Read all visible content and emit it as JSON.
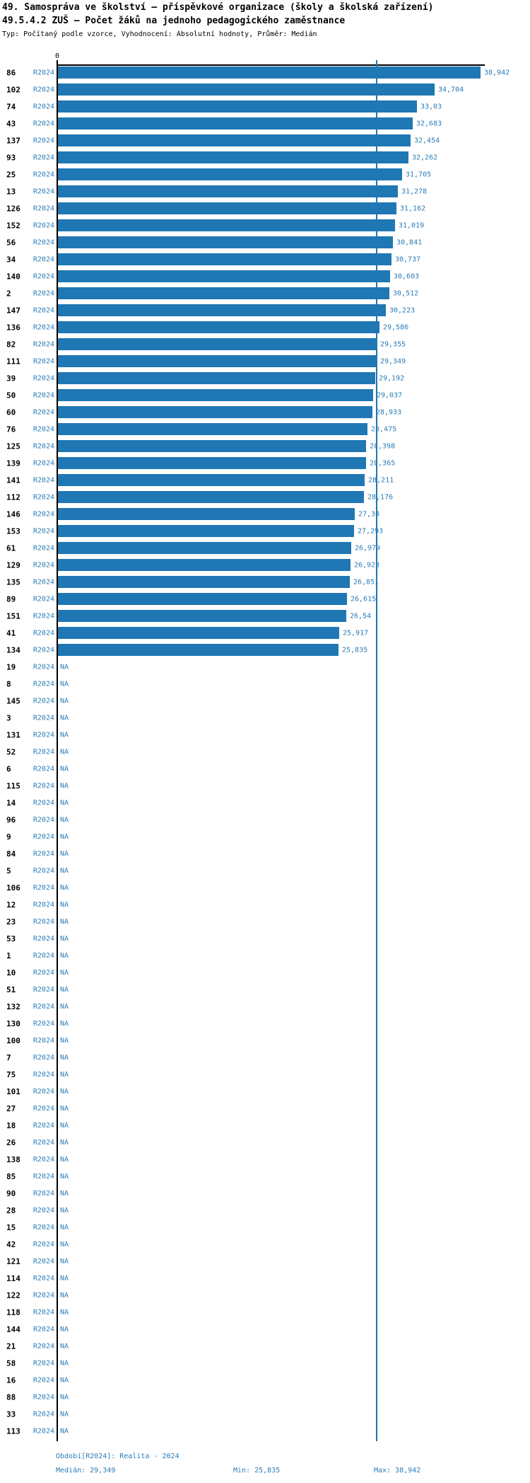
{
  "header": {
    "title": "49. Samospráva ve školství – příspěvkové organizace (školy a školská zařízení)",
    "subtitle": "49.5.4.2 ZUŠ – Počet žáků na jednoho pedagogického zaměstnance",
    "meta": "Typ: Počítaný podle vzorce, Vyhodnocení: Absolutní hodnoty, Průměr: Medián"
  },
  "chart_data": {
    "type": "bar",
    "orientation": "horizontal",
    "title": "49.5.4.2 ZUŠ – Počet žáků na jednoho pedagogického zaměstnance",
    "period_label": "R2024",
    "zero_label": "0",
    "na_text": "NA",
    "xlim": [
      0,
      38.942
    ],
    "median": 29.349,
    "min": 25.835,
    "max": 38.942,
    "legend_position": "none",
    "grid": false,
    "rows": [
      {
        "id": "86",
        "value": 38.942,
        "display": "38,942"
      },
      {
        "id": "102",
        "value": 34.704,
        "display": "34,704"
      },
      {
        "id": "74",
        "value": 33.03,
        "display": "33,03"
      },
      {
        "id": "43",
        "value": 32.683,
        "display": "32,683"
      },
      {
        "id": "137",
        "value": 32.454,
        "display": "32,454"
      },
      {
        "id": "93",
        "value": 32.262,
        "display": "32,262"
      },
      {
        "id": "25",
        "value": 31.705,
        "display": "31,705"
      },
      {
        "id": "13",
        "value": 31.278,
        "display": "31,278"
      },
      {
        "id": "126",
        "value": 31.162,
        "display": "31,162"
      },
      {
        "id": "152",
        "value": 31.019,
        "display": "31,019"
      },
      {
        "id": "56",
        "value": 30.841,
        "display": "30,841"
      },
      {
        "id": "34",
        "value": 30.737,
        "display": "30,737"
      },
      {
        "id": "140",
        "value": 30.603,
        "display": "30,603"
      },
      {
        "id": "2",
        "value": 30.512,
        "display": "30,512"
      },
      {
        "id": "147",
        "value": 30.223,
        "display": "30,223"
      },
      {
        "id": "136",
        "value": 29.586,
        "display": "29,586"
      },
      {
        "id": "82",
        "value": 29.355,
        "display": "29,355"
      },
      {
        "id": "111",
        "value": 29.349,
        "display": "29,349"
      },
      {
        "id": "39",
        "value": 29.192,
        "display": "29,192"
      },
      {
        "id": "50",
        "value": 29.037,
        "display": "29,037"
      },
      {
        "id": "60",
        "value": 28.933,
        "display": "28,933"
      },
      {
        "id": "76",
        "value": 28.475,
        "display": "28,475"
      },
      {
        "id": "125",
        "value": 28.398,
        "display": "28,398"
      },
      {
        "id": "139",
        "value": 28.365,
        "display": "28,365"
      },
      {
        "id": "141",
        "value": 28.211,
        "display": "28,211"
      },
      {
        "id": "112",
        "value": 28.176,
        "display": "28,176"
      },
      {
        "id": "146",
        "value": 27.34,
        "display": "27,34"
      },
      {
        "id": "153",
        "value": 27.293,
        "display": "27,293"
      },
      {
        "id": "61",
        "value": 26.979,
        "display": "26,979"
      },
      {
        "id": "129",
        "value": 26.923,
        "display": "26,923"
      },
      {
        "id": "135",
        "value": 26.851,
        "display": "26,851"
      },
      {
        "id": "89",
        "value": 26.615,
        "display": "26,615"
      },
      {
        "id": "151",
        "value": 26.54,
        "display": "26,54"
      },
      {
        "id": "41",
        "value": 25.917,
        "display": "25,917"
      },
      {
        "id": "134",
        "value": 25.835,
        "display": "25,835"
      },
      {
        "id": "19",
        "value": null,
        "display": "NA"
      },
      {
        "id": "8",
        "value": null,
        "display": "NA"
      },
      {
        "id": "145",
        "value": null,
        "display": "NA"
      },
      {
        "id": "3",
        "value": null,
        "display": "NA"
      },
      {
        "id": "131",
        "value": null,
        "display": "NA"
      },
      {
        "id": "52",
        "value": null,
        "display": "NA"
      },
      {
        "id": "6",
        "value": null,
        "display": "NA"
      },
      {
        "id": "115",
        "value": null,
        "display": "NA"
      },
      {
        "id": "14",
        "value": null,
        "display": "NA"
      },
      {
        "id": "96",
        "value": null,
        "display": "NA"
      },
      {
        "id": "9",
        "value": null,
        "display": "NA"
      },
      {
        "id": "84",
        "value": null,
        "display": "NA"
      },
      {
        "id": "5",
        "value": null,
        "display": "NA"
      },
      {
        "id": "106",
        "value": null,
        "display": "NA"
      },
      {
        "id": "12",
        "value": null,
        "display": "NA"
      },
      {
        "id": "23",
        "value": null,
        "display": "NA"
      },
      {
        "id": "53",
        "value": null,
        "display": "NA"
      },
      {
        "id": "1",
        "value": null,
        "display": "NA"
      },
      {
        "id": "10",
        "value": null,
        "display": "NA"
      },
      {
        "id": "51",
        "value": null,
        "display": "NA"
      },
      {
        "id": "132",
        "value": null,
        "display": "NA"
      },
      {
        "id": "130",
        "value": null,
        "display": "NA"
      },
      {
        "id": "100",
        "value": null,
        "display": "NA"
      },
      {
        "id": "7",
        "value": null,
        "display": "NA"
      },
      {
        "id": "75",
        "value": null,
        "display": "NA"
      },
      {
        "id": "101",
        "value": null,
        "display": "NA"
      },
      {
        "id": "27",
        "value": null,
        "display": "NA"
      },
      {
        "id": "18",
        "value": null,
        "display": "NA"
      },
      {
        "id": "26",
        "value": null,
        "display": "NA"
      },
      {
        "id": "138",
        "value": null,
        "display": "NA"
      },
      {
        "id": "85",
        "value": null,
        "display": "NA"
      },
      {
        "id": "90",
        "value": null,
        "display": "NA"
      },
      {
        "id": "28",
        "value": null,
        "display": "NA"
      },
      {
        "id": "15",
        "value": null,
        "display": "NA"
      },
      {
        "id": "42",
        "value": null,
        "display": "NA"
      },
      {
        "id": "121",
        "value": null,
        "display": "NA"
      },
      {
        "id": "114",
        "value": null,
        "display": "NA"
      },
      {
        "id": "122",
        "value": null,
        "display": "NA"
      },
      {
        "id": "118",
        "value": null,
        "display": "NA"
      },
      {
        "id": "144",
        "value": null,
        "display": "NA"
      },
      {
        "id": "21",
        "value": null,
        "display": "NA"
      },
      {
        "id": "58",
        "value": null,
        "display": "NA"
      },
      {
        "id": "16",
        "value": null,
        "display": "NA"
      },
      {
        "id": "88",
        "value": null,
        "display": "NA"
      },
      {
        "id": "33",
        "value": null,
        "display": "NA"
      },
      {
        "id": "113",
        "value": null,
        "display": "NA"
      }
    ]
  },
  "footer": {
    "period": "Období[R2024]: Realita - 2024",
    "median": "Medián: 29,349",
    "min": "Min: 25,835",
    "max": "Max: 38,942"
  },
  "colors": {
    "bar": "#1f77b4",
    "label_text": "#2b7cb8",
    "median_line": "#1f77b4",
    "axis": "#000000",
    "title_text": "#000000"
  }
}
